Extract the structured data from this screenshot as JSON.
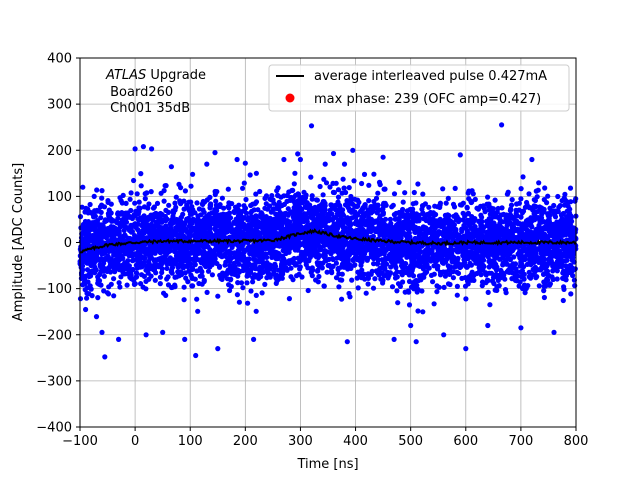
{
  "chart_data": {
    "type": "scatter",
    "title": "",
    "xlabel": "Time [ns]",
    "ylabel": "Amplitude [ADC Counts]",
    "xlim": [
      -100,
      800
    ],
    "ylim": [
      -400,
      400
    ],
    "xticks": [
      -100,
      0,
      100,
      200,
      300,
      400,
      500,
      600,
      700,
      800
    ],
    "yticks": [
      -400,
      -300,
      -200,
      -100,
      0,
      100,
      200,
      300,
      400
    ],
    "grid": true,
    "legend_position": "top-right",
    "annotation": {
      "line1_italic": "ATLAS",
      "line1_rest": " Upgrade",
      "line2": " Board260",
      "line3": " Ch001 35dB"
    },
    "series": [
      {
        "name": "average interleaved pulse 0.427mA",
        "kind": "line",
        "color": "#000000",
        "x": [
          -100,
          -50,
          0,
          50,
          100,
          150,
          200,
          250,
          275,
          300,
          325,
          350,
          375,
          400,
          450,
          500,
          550,
          600,
          650,
          700,
          750,
          800
        ],
        "y": [
          -20,
          -5,
          0,
          3,
          3,
          3,
          3,
          5,
          12,
          20,
          25,
          18,
          12,
          8,
          3,
          0,
          -2,
          0,
          0,
          0,
          0,
          0
        ]
      },
      {
        "name": "max phase: 239 (OFC amp=0.427)",
        "kind": "marker",
        "color": "#ff0000",
        "x": [],
        "y": []
      },
      {
        "name": "",
        "kind": "scatter",
        "color": "#0000ff",
        "spread_sigma": 45,
        "x": [
          -95,
          -60,
          -55,
          -30,
          0,
          15,
          20,
          30,
          50,
          90,
          110,
          130,
          145,
          150,
          185,
          200,
          215,
          220,
          270,
          290,
          295,
          300,
          320,
          345,
          360,
          380,
          385,
          395,
          450,
          470,
          500,
          510,
          560,
          590,
          600,
          640,
          665,
          700,
          720,
          760,
          790
        ],
        "y": [
          120,
          -195,
          -248,
          -210,
          203,
          208,
          -200,
          203,
          -195,
          -210,
          -245,
          170,
          195,
          -230,
          180,
          172,
          -210,
          150,
          180,
          150,
          192,
          180,
          253,
          170,
          193,
          170,
          -215,
          200,
          185,
          -210,
          -180,
          -215,
          -200,
          190,
          -230,
          -180,
          255,
          -185,
          180,
          -195,
          118
        ]
      }
    ]
  }
}
